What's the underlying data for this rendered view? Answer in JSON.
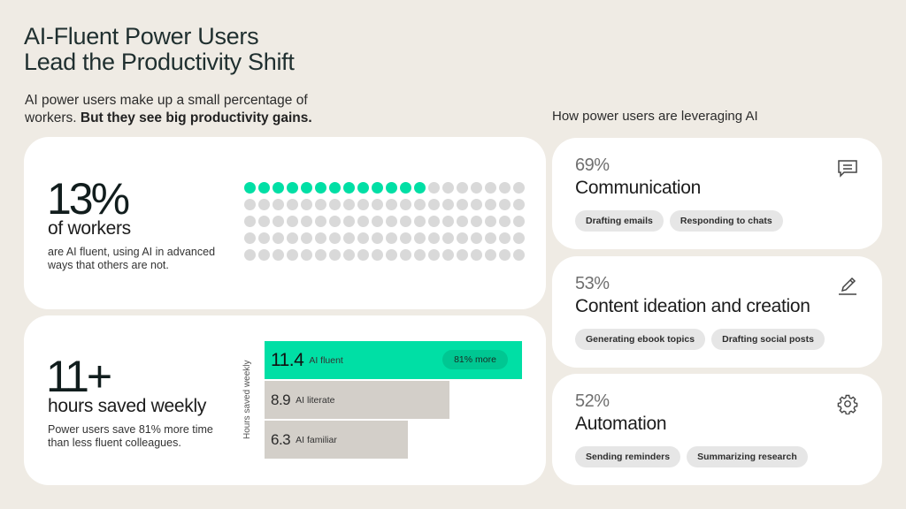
{
  "header": {
    "title_line1": "AI-Fluent Power Users",
    "title_line2": "Lead the Productivity Shift",
    "subtitle_plain": "AI power users make up a small percentage of workers. ",
    "subtitle_bold": "But they see big productivity gains."
  },
  "fluent_card": {
    "stat": "13%",
    "label": "of workers",
    "description": "are AI fluent, using AI in advanced ways that others are not.",
    "dot_total": 100,
    "dot_highlighted": 13,
    "highlight_color": "#00dfa5",
    "base_color": "#d9d9d9"
  },
  "hours_card": {
    "stat": "11+",
    "label": "hours saved weekly",
    "description": "Power users save 81% more time than less fluent colleagues.",
    "axis_label": "Hours saved weekly",
    "bars": [
      {
        "value": "11.4",
        "label": "AI fluent",
        "badge": "81% more"
      },
      {
        "value": "8.9",
        "label": "AI literate"
      },
      {
        "value": "6.3",
        "label": "AI familiar"
      }
    ]
  },
  "right": {
    "heading": "How power users are leveraging AI",
    "cards": [
      {
        "pct": "69%",
        "category": "Communication",
        "icon": "chat-icon",
        "chips": [
          "Drafting emails",
          "Responding to chats"
        ]
      },
      {
        "pct": "53%",
        "category": "Content ideation and creation",
        "icon": "pencil-icon",
        "chips": [
          "Generating ebook topics",
          "Drafting social posts"
        ]
      },
      {
        "pct": "52%",
        "category": "Automation",
        "icon": "gear-icon",
        "chips": [
          "Sending reminders",
          "Summarizing research"
        ]
      }
    ]
  },
  "chart_data": [
    {
      "type": "waffle",
      "title": "13% of workers are AI fluent",
      "grid": {
        "rows": 5,
        "columns": 20
      },
      "total": 100,
      "highlighted": 13,
      "colors": {
        "highlighted": "#00dfa5",
        "rest": "#d9d9d9"
      }
    },
    {
      "type": "bar",
      "orientation": "horizontal",
      "title": "Hours saved weekly",
      "ylabel": "Hours saved weekly",
      "categories": [
        "AI fluent",
        "AI literate",
        "AI familiar"
      ],
      "values": [
        11.4,
        8.9,
        6.3
      ],
      "annotations": [
        {
          "category": "AI fluent",
          "text": "81% more"
        }
      ],
      "colors": [
        "#00dfa5",
        "#d3cfc9",
        "#d3cfc9"
      ],
      "grid": false
    },
    {
      "type": "table",
      "title": "How power users are leveraging AI",
      "categories": [
        "Communication",
        "Content ideation and creation",
        "Automation"
      ],
      "values": [
        69,
        53,
        52
      ],
      "unit": "%"
    }
  ]
}
